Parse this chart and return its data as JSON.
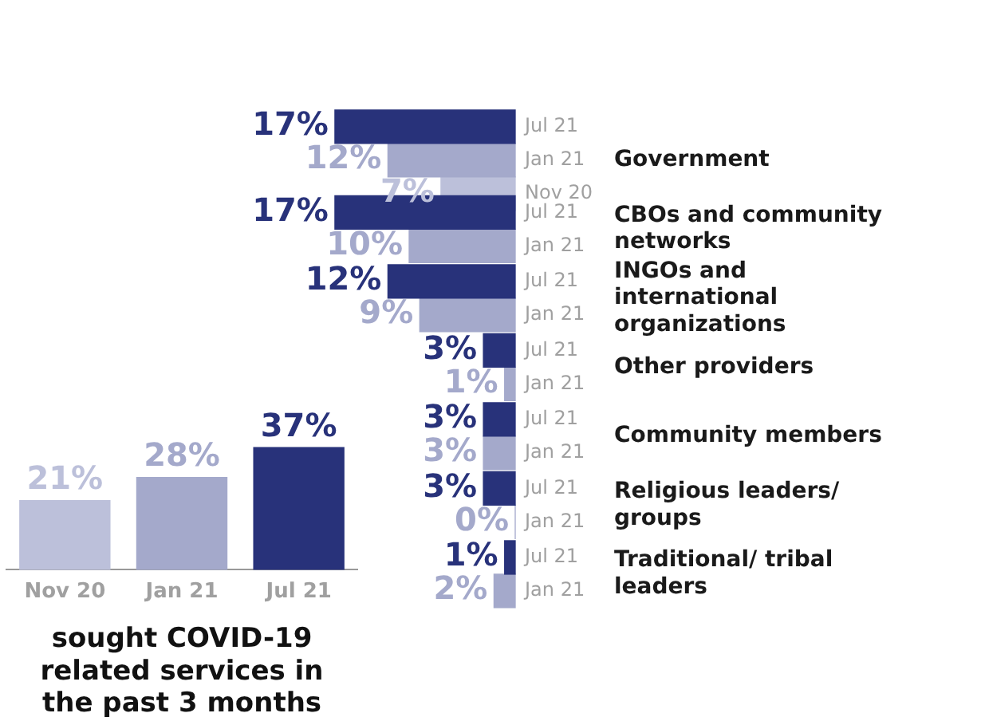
{
  "chart_data": [
    {
      "type": "bar",
      "orientation": "horizontal",
      "categories": [
        "Government",
        "CBOs and community networks",
        "INGOs and international organizations",
        "Other providers",
        "Community members",
        "Religious leaders/ groups",
        "Traditional/ tribal leaders"
      ],
      "series": [
        {
          "name": "Jul 21",
          "color": "#28327a",
          "values": [
            17,
            17,
            12,
            3,
            3,
            3,
            1
          ],
          "value_labels": [
            "17%",
            "17%",
            "12%",
            "3%",
            "3%",
            "3%",
            "1%"
          ]
        },
        {
          "name": "Jan 21",
          "color": "#a4a9cb",
          "values": [
            12,
            10,
            9,
            1,
            3,
            0,
            2
          ],
          "value_labels": [
            "12%",
            "10%",
            "9%",
            "1%",
            "3%",
            "0%",
            "2%"
          ]
        },
        {
          "name": "Nov 20",
          "color": "#bcc0da",
          "values": [
            7,
            null,
            null,
            null,
            null,
            null,
            null
          ],
          "value_labels": [
            "7%",
            null,
            null,
            null,
            null,
            null,
            null
          ]
        }
      ],
      "tick_labels": "y",
      "legend": false
    },
    {
      "type": "bar",
      "title": "sought COVID-19 related services in the past 3 months",
      "categories": [
        "Nov 20",
        "Jan 21",
        "Jul 21"
      ],
      "values": [
        21,
        28,
        37
      ],
      "colors": [
        "#bcc0da",
        "#a4a9cb",
        "#28327a"
      ],
      "value_labels": [
        "21%",
        "28%",
        "37%"
      ],
      "tick_labels": "x",
      "legend": false
    }
  ]
}
